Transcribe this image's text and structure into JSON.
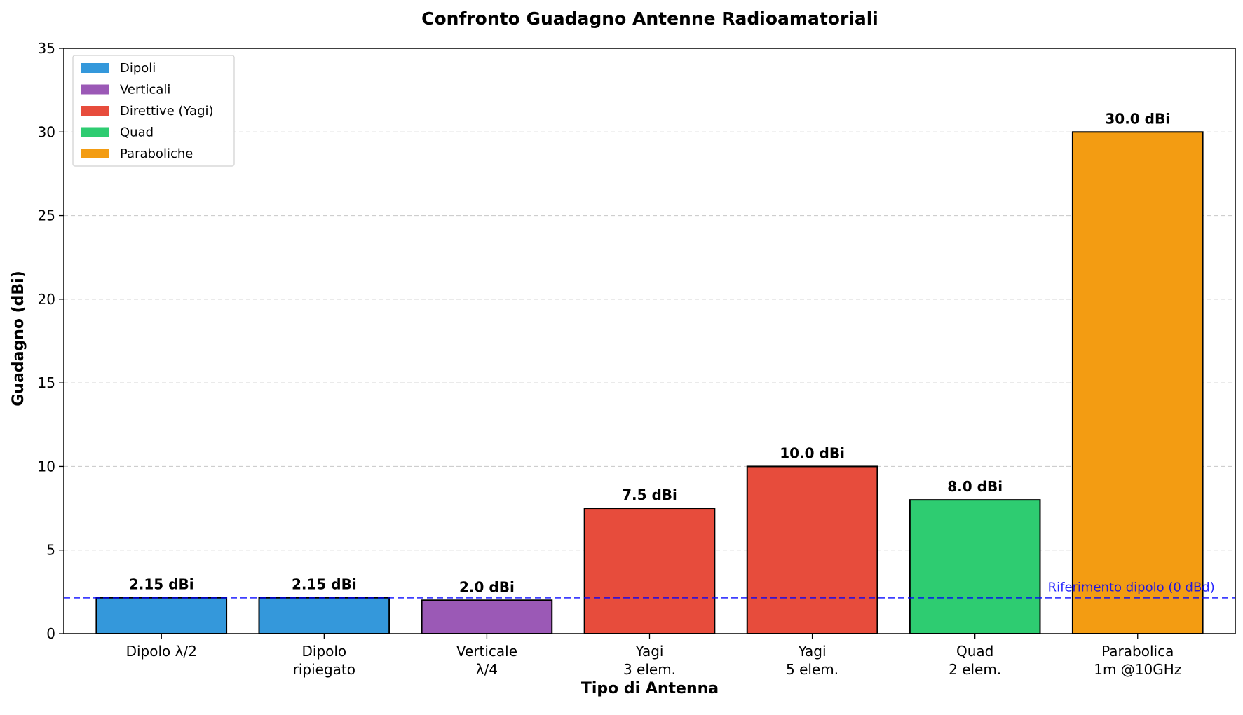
{
  "chart_data": {
    "type": "bar",
    "title": "Confronto Guadagno Antenne Radioamatoriali",
    "xlabel": "Tipo di Antenna",
    "ylabel": "Guadagno (dBi)",
    "ylim": [
      0,
      35
    ],
    "yticks": [
      0,
      5,
      10,
      15,
      20,
      25,
      30,
      35
    ],
    "grid": "y-dashed",
    "legend_position": "top-left",
    "categories": [
      [
        "Dipolo λ/2"
      ],
      [
        "Dipolo",
        "ripiegato"
      ],
      [
        "Verticale",
        "λ/4"
      ],
      [
        "Yagi",
        "3 elem."
      ],
      [
        "Yagi",
        "5 elem."
      ],
      [
        "Quad",
        "2 elem."
      ],
      [
        "Parabolica",
        "1m @10GHz"
      ]
    ],
    "values": [
      2.15,
      2.15,
      2.0,
      7.5,
      10.0,
      8.0,
      30.0
    ],
    "value_labels": [
      "2.15 dBi",
      "2.15 dBi",
      "2.0 dBi",
      "7.5 dBi",
      "10.0 dBi",
      "8.0 dBi",
      "30.0 dBi"
    ],
    "bar_groups": [
      0,
      0,
      1,
      2,
      2,
      3,
      4
    ],
    "groups": [
      {
        "name": "Dipoli",
        "color": "#3498db"
      },
      {
        "name": "Verticali",
        "color": "#9b59b6"
      },
      {
        "name": "Direttive (Yagi)",
        "color": "#e74c3c"
      },
      {
        "name": "Quad",
        "color": "#2ecc71"
      },
      {
        "name": "Paraboliche",
        "color": "#f39c12"
      }
    ],
    "reference_line": {
      "value": 2.15,
      "label": "Riferimento dipolo (0 dBd)",
      "color": "#0000ff"
    }
  }
}
